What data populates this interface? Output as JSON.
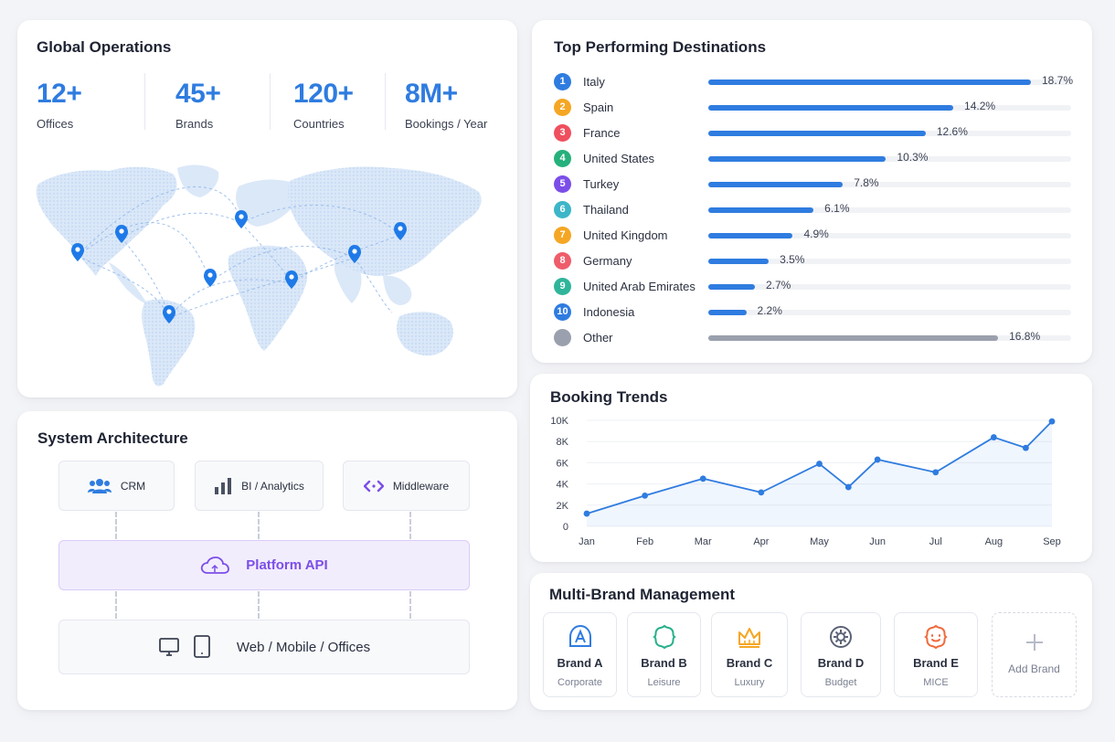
{
  "global": {
    "title": "Global Operations",
    "stats": [
      {
        "value": "12+",
        "label": "Offices"
      },
      {
        "value": "45+",
        "label": "Brands"
      },
      {
        "value": "120+",
        "label": "Countries"
      },
      {
        "value": "8M+",
        "label": "Bookings / Year"
      }
    ],
    "map_icon": "world-map-with-location-pins"
  },
  "destinations": {
    "title": "Top Performing Destinations",
    "max_percent": 18.7,
    "items": [
      {
        "rank": "1",
        "name": "Italy",
        "pct_text": "18.7%",
        "pct": 18.7,
        "color": "#2f7ce0"
      },
      {
        "rank": "2",
        "name": "Spain",
        "pct_text": "14.2%",
        "pct": 14.2,
        "color": "#f5a623"
      },
      {
        "rank": "3",
        "name": "France",
        "pct_text": "12.6%",
        "pct": 12.6,
        "color": "#ef4f5e"
      },
      {
        "rank": "4",
        "name": "United States",
        "pct_text": "10.3%",
        "pct": 10.3,
        "color": "#26b07c"
      },
      {
        "rank": "5",
        "name": "Turkey",
        "pct_text": "7.8%",
        "pct": 7.8,
        "color": "#7b4ee8"
      },
      {
        "rank": "6",
        "name": "Thailand",
        "pct_text": "6.1%",
        "pct": 6.1,
        "color": "#3cb6c8"
      },
      {
        "rank": "7",
        "name": "United Kingdom",
        "pct_text": "4.9%",
        "pct": 4.9,
        "color": "#f5a623"
      },
      {
        "rank": "8",
        "name": "Germany",
        "pct_text": "3.5%",
        "pct": 3.5,
        "color": "#ef5d6b"
      },
      {
        "rank": "9",
        "name": "United Arab Emirates",
        "pct_text": "2.7%",
        "pct": 2.7,
        "color": "#2fb59a"
      },
      {
        "rank": "10",
        "name": "Indonesia",
        "pct_text": "2.2%",
        "pct": 2.2,
        "color": "#2f7ce0"
      },
      {
        "rank": "",
        "name": "Other",
        "pct_text": "16.8%",
        "pct": 16.8,
        "color": "#9aa0ad"
      }
    ],
    "bar_color": "#2f7ce0",
    "other_bar_color": "#9aa0ad"
  },
  "trends": {
    "title": "Booking Trends"
  },
  "chart_data": {
    "type": "line",
    "title": "Booking Trends",
    "x_tick_labels": [
      "Jan",
      "Feb",
      "Mar",
      "Apr",
      "May",
      "Jun",
      "Jul",
      "Aug",
      "Sep"
    ],
    "y_tick_labels": [
      "10K",
      "8K",
      "6K",
      "4K",
      "2K",
      "0"
    ],
    "ylim": [
      0,
      10000
    ],
    "series": [
      {
        "values": [
          1200,
          2900,
          4500,
          3200,
          5900,
          3700,
          6300,
          5100,
          8400,
          7400,
          9900
        ]
      }
    ],
    "x_positions": [
      0,
      1,
      2,
      3,
      4,
      4.5,
      5,
      6,
      7,
      7.55,
      8
    ],
    "grid": true,
    "color": "#2f7ce0",
    "area_fill": true
  },
  "architecture": {
    "title": "System Architecture",
    "top": [
      {
        "label": "CRM",
        "icon": "users-icon"
      },
      {
        "label": "BI / Analytics",
        "icon": "bar-chart-icon"
      },
      {
        "label": "Middleware",
        "icon": "code-arrows-icon"
      }
    ],
    "platform": {
      "label": "Platform API",
      "icon": "cloud-icon"
    },
    "bottom": {
      "label": "Web / Mobile / Offices",
      "icons": [
        "desktop-icon",
        "tablet-icon"
      ]
    },
    "platform_color": "#7b4ee8"
  },
  "brands": {
    "title": "Multi-Brand Management",
    "items": [
      {
        "name": "Brand A",
        "type": "Corporate",
        "icon": "letter-a-badge-icon",
        "color": "#2f7ce0"
      },
      {
        "name": "Brand B",
        "type": "Leisure",
        "icon": "flower-badge-icon",
        "color": "#26b08a"
      },
      {
        "name": "Brand C",
        "type": "Luxury",
        "icon": "crown-icon",
        "color": "#f5a623"
      },
      {
        "name": "Brand D",
        "type": "Budget",
        "icon": "gear-badge-icon",
        "color": "#5b6275"
      },
      {
        "name": "Brand E",
        "type": "MICE",
        "icon": "star-badge-icon",
        "color": "#f06a3c"
      }
    ],
    "add_label": "Add Brand"
  }
}
